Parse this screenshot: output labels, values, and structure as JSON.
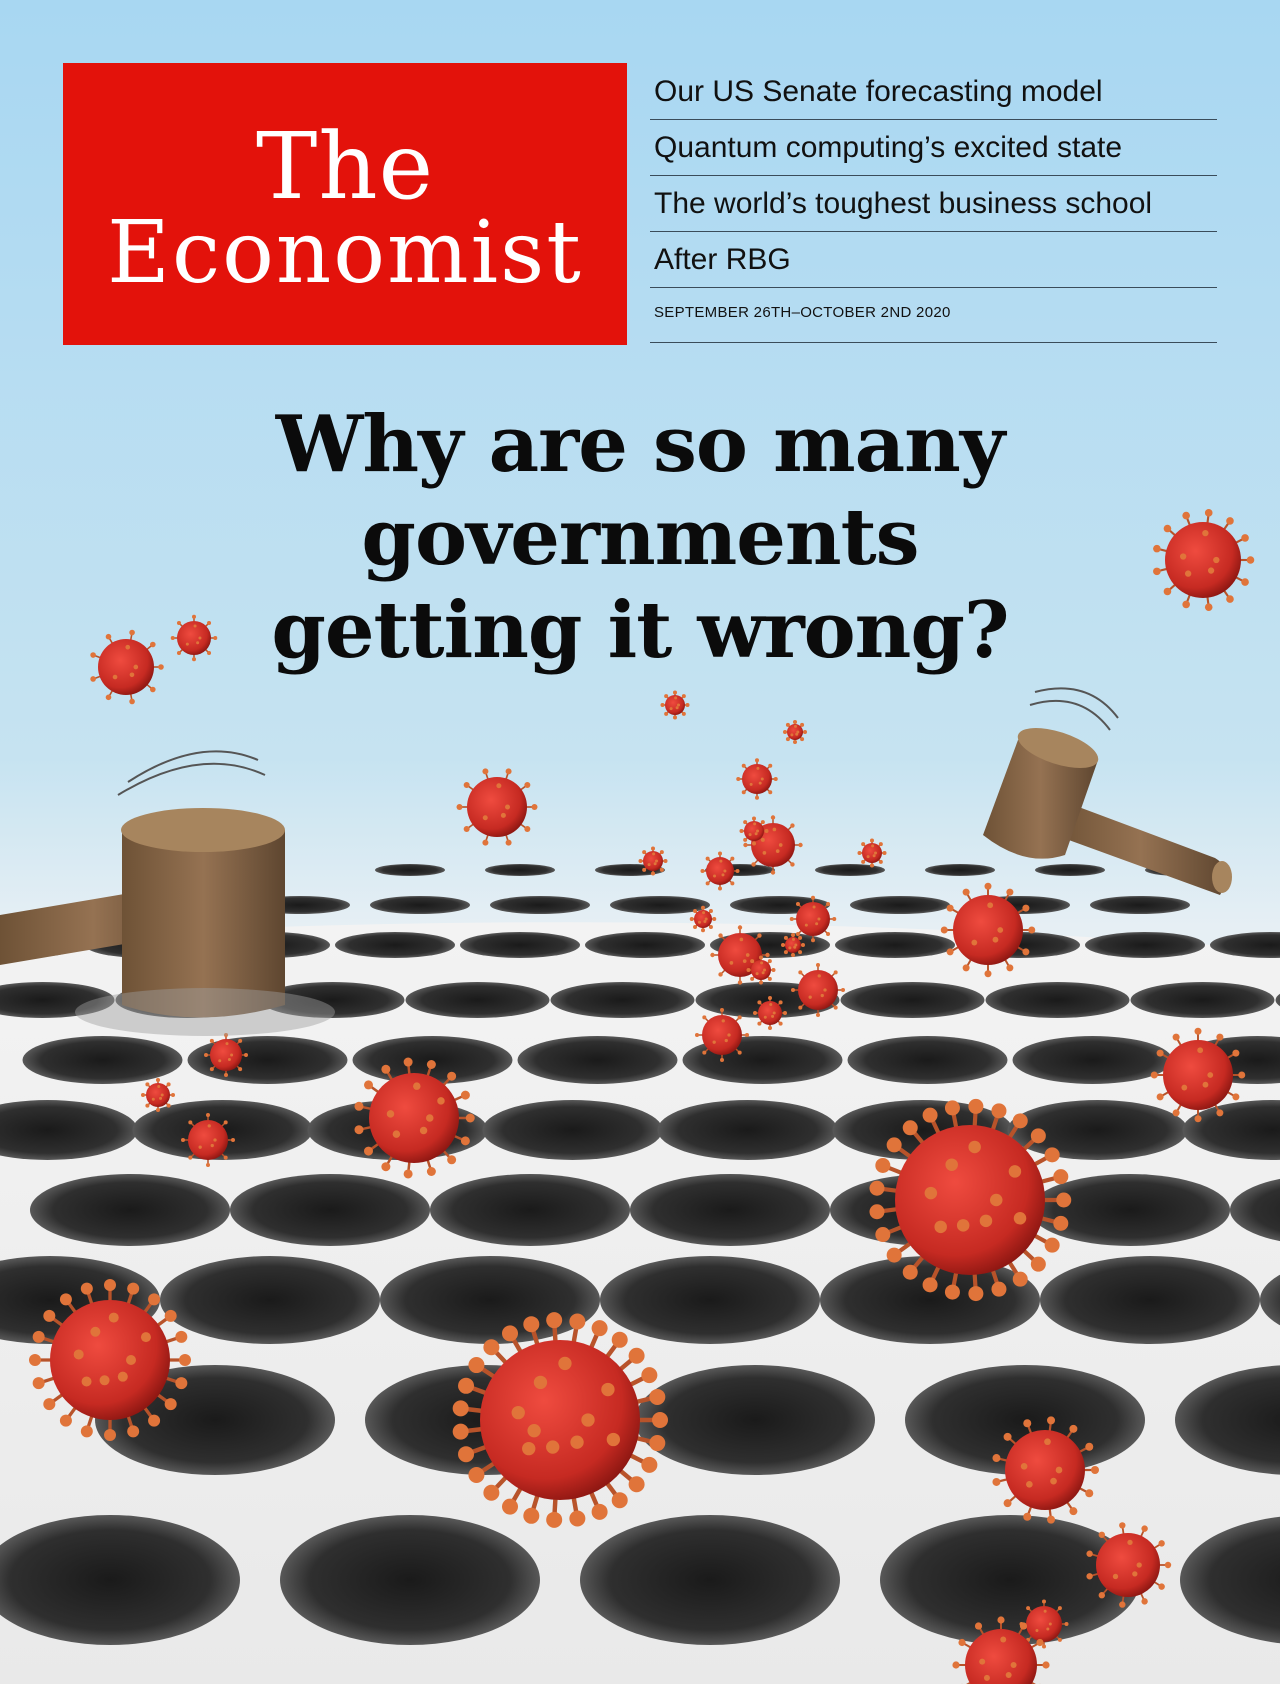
{
  "magazine": {
    "masthead": [
      "The",
      "Economist"
    ],
    "brand_color": "#e3120b",
    "teasers": [
      "Our US Senate forecasting model",
      "Quantum computing’s excited state",
      "The world’s toughest business school",
      "After RBG"
    ],
    "dateline": "SEPTEMBER 26TH–OCTOBER 2ND 2020"
  },
  "cover": {
    "headline_lines": [
      "Why are so many",
      "governments",
      "getting it wrong?"
    ],
    "illustration": "whack-a-mole board of round holes with red coronavirus particles popping out and two wooden mallets",
    "colors": {
      "sky_top": "#a9d8f2",
      "sky_bottom": "#eaf3f7",
      "board": "#f1f1f1",
      "virus": "#d8322a",
      "spike": "#e0743a",
      "mallet": "#8a6a48"
    }
  }
}
